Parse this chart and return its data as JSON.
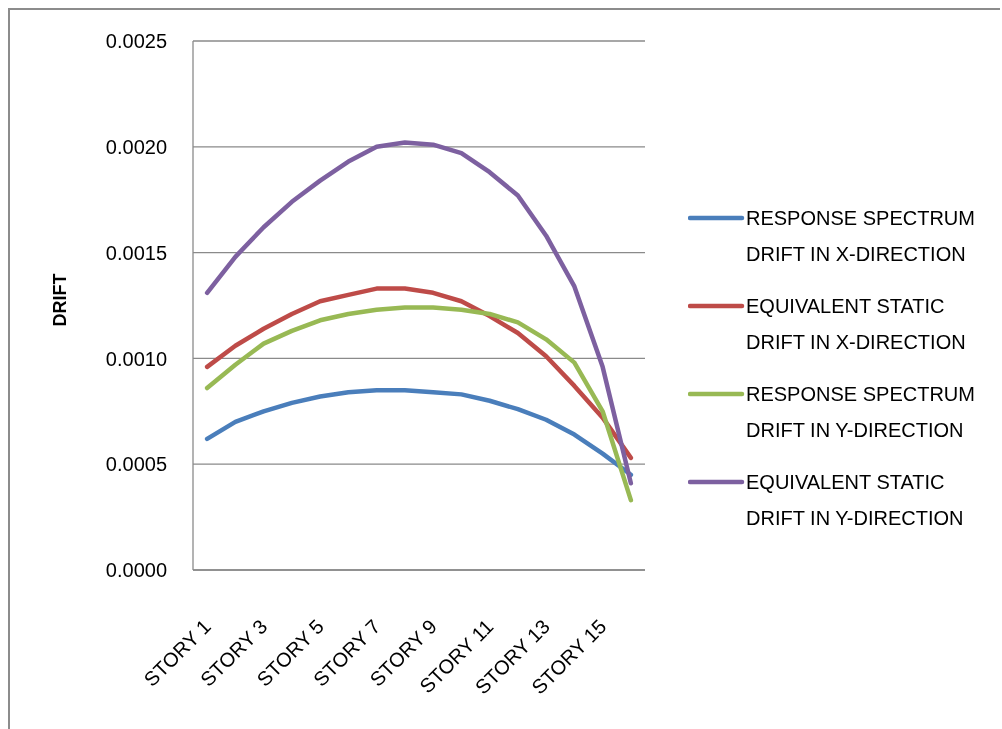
{
  "chart_data": {
    "type": "line",
    "ylabel": "DRIFT",
    "categories": [
      "STORY 1",
      null,
      "STORY 3",
      null,
      "STORY 5",
      null,
      "STORY 7",
      null,
      "STORY 9",
      null,
      "STORY 11",
      null,
      "STORY 13",
      null,
      "STORY 15",
      null
    ],
    "series": [
      {
        "name": "RESPONSE SPECTRUM DRIFT IN X-DIRECTION",
        "color": "#4a7ebb",
        "values": [
          0.00062,
          0.0007,
          0.00075,
          0.00079,
          0.00082,
          0.00084,
          0.00085,
          0.00085,
          0.00084,
          0.00083,
          0.0008,
          0.00076,
          0.00071,
          0.00064,
          0.00055,
          0.00045
        ]
      },
      {
        "name": "EQUIVALENT STATIC DRIFT IN X-DIRECTION",
        "color": "#be4b48",
        "values": [
          0.00096,
          0.00106,
          0.00114,
          0.00121,
          0.00127,
          0.0013,
          0.00133,
          0.00133,
          0.00131,
          0.00127,
          0.0012,
          0.00112,
          0.00101,
          0.00087,
          0.00072,
          0.00053
        ]
      },
      {
        "name": "RESPONSE SPECTRUM DRIFT IN Y-DIRECTION",
        "color": "#98b954",
        "values": [
          0.00086,
          0.00097,
          0.00107,
          0.00113,
          0.00118,
          0.00121,
          0.00123,
          0.00124,
          0.00124,
          0.00123,
          0.00121,
          0.00117,
          0.00109,
          0.00098,
          0.00075,
          0.00033
        ]
      },
      {
        "name": "EQUIVALENT STATIC DRIFT IN Y-DIRECTION",
        "color": "#7d60a0",
        "values": [
          0.00131,
          0.00148,
          0.00162,
          0.00174,
          0.00184,
          0.00193,
          0.002,
          0.00202,
          0.00201,
          0.00197,
          0.00188,
          0.00177,
          0.00158,
          0.00134,
          0.00096,
          0.00041
        ]
      }
    ],
    "ylim": [
      0,
      0.0025
    ],
    "yticks": [
      {
        "value": 0,
        "label": "0.0000"
      },
      {
        "value": 0.0005,
        "label": "0.0005"
      },
      {
        "value": 0.001,
        "label": "0.0010"
      },
      {
        "value": 0.0015,
        "label": "0.0015"
      },
      {
        "value": 0.002,
        "label": "0.0020"
      },
      {
        "value": 0.0025,
        "label": "0.0025"
      }
    ],
    "grid": "y",
    "legend": "right",
    "marker": "none",
    "line_style": "solid"
  }
}
